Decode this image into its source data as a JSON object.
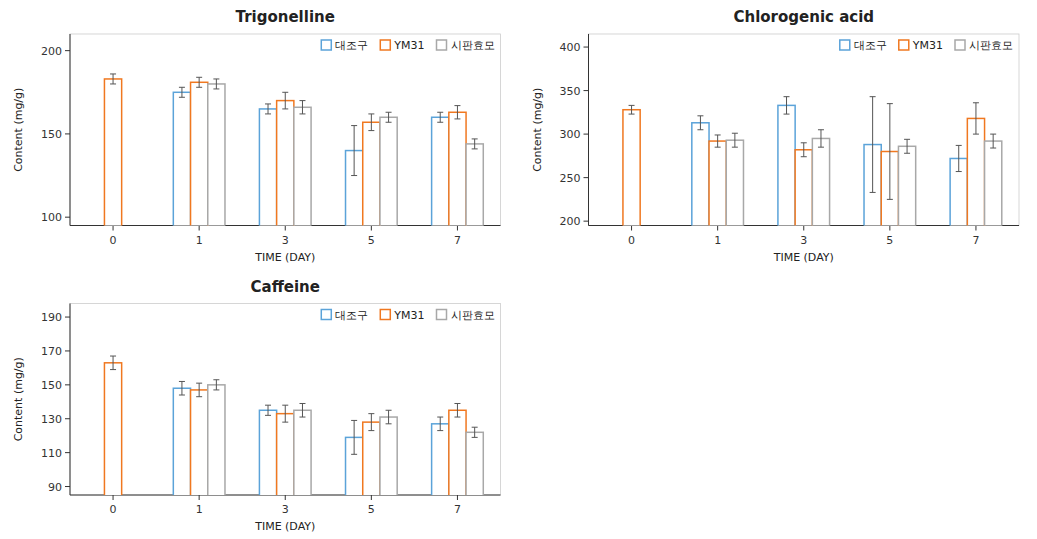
{
  "chart_data": [
    {
      "type": "bar",
      "title": "Trigonelline",
      "xlabel": "TIME (DAY)",
      "ylabel": "Content (mg/g)",
      "categories": [
        "0",
        "1",
        "3",
        "5",
        "7"
      ],
      "series": [
        {
          "name": "대조구",
          "color": "#5BA3D9",
          "values": [
            null,
            175,
            165,
            140,
            160
          ],
          "errors": [
            null,
            3,
            3,
            15,
            3
          ]
        },
        {
          "name": "YM31",
          "color": "#F07820",
          "values": [
            183,
            181,
            170,
            157,
            163
          ],
          "errors": [
            3,
            3,
            5,
            5,
            4
          ]
        },
        {
          "name": "시판효모",
          "color": "#A8A8A8",
          "values": [
            null,
            180,
            166,
            160,
            144
          ],
          "errors": [
            null,
            3,
            4,
            3,
            3
          ]
        }
      ],
      "ylim": [
        95,
        210
      ],
      "yticks": [
        100,
        150,
        200
      ],
      "grid": false,
      "legend": "upper right"
    },
    {
      "type": "bar",
      "title": "Chlorogenic acid",
      "xlabel": "TIME (DAY)",
      "ylabel": "Content (mg/g)",
      "categories": [
        "0",
        "1",
        "3",
        "5",
        "7"
      ],
      "series": [
        {
          "name": "대조구",
          "color": "#5BA3D9",
          "values": [
            null,
            313,
            333,
            288,
            272
          ],
          "errors": [
            null,
            8,
            10,
            55,
            15
          ]
        },
        {
          "name": "YM31",
          "color": "#F07820",
          "values": [
            328,
            292,
            282,
            280,
            318
          ],
          "errors": [
            5,
            7,
            8,
            55,
            18
          ]
        },
        {
          "name": "시판효모",
          "color": "#A8A8A8",
          "values": [
            null,
            293,
            295,
            286,
            292
          ],
          "errors": [
            null,
            8,
            10,
            8,
            8
          ]
        }
      ],
      "ylim": [
        195,
        415
      ],
      "yticks": [
        200,
        250,
        300,
        350,
        400
      ],
      "grid": false,
      "legend": "upper right"
    },
    {
      "type": "bar",
      "title": "Caffeine",
      "xlabel": "TIME (DAY)",
      "ylabel": "Content (mg/g)",
      "categories": [
        "0",
        "1",
        "3",
        "5",
        "7"
      ],
      "series": [
        {
          "name": "대조구",
          "color": "#5BA3D9",
          "values": [
            null,
            148,
            135,
            119,
            127
          ],
          "errors": [
            null,
            4,
            3,
            10,
            4
          ]
        },
        {
          "name": "YM31",
          "color": "#F07820",
          "values": [
            163,
            147,
            133,
            128,
            135
          ],
          "errors": [
            4,
            4,
            5,
            5,
            4
          ]
        },
        {
          "name": "시판효모",
          "color": "#A8A8A8",
          "values": [
            null,
            150,
            135,
            131,
            122
          ],
          "errors": [
            null,
            3,
            4,
            4,
            3
          ]
        }
      ],
      "ylim": [
        85,
        198
      ],
      "yticks": [
        90,
        110,
        130,
        150,
        170,
        190
      ],
      "grid": false,
      "legend": "upper right"
    }
  ]
}
